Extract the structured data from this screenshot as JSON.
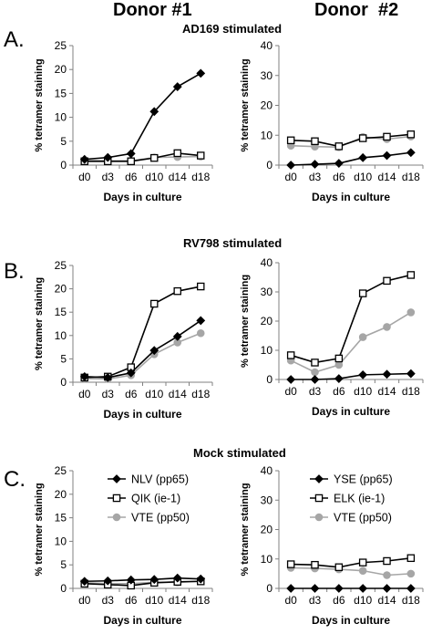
{
  "donors": [
    "Donor #1",
    "Donor  #2"
  ],
  "rows": [
    {
      "letter": "A.",
      "title": "AD169 stimulated"
    },
    {
      "letter": "B.",
      "title": "RV798 stimulated"
    },
    {
      "letter": "C.",
      "title": "Mock stimulated"
    }
  ],
  "colors": {
    "black": "#000000",
    "gray": "#a6a6a6",
    "axis": "#808080"
  },
  "chart_data": [
    {
      "id": "A1",
      "type": "line",
      "ylabel": "% tetramer staining",
      "xlabel": "Days in culture",
      "categories": [
        "d0",
        "d3",
        "d6",
        "d10",
        "d14",
        "d18"
      ],
      "ylim": [
        0,
        25
      ],
      "yticks": [
        0,
        5,
        10,
        15,
        20,
        25
      ],
      "series": [
        {
          "marker": "diamond",
          "color": "#000000",
          "values": [
            1.2,
            1.6,
            2.4,
            11.2,
            16.4,
            19.2
          ]
        },
        {
          "marker": "square",
          "color": "#000000",
          "values": [
            0.8,
            0.8,
            0.8,
            1.5,
            2.5,
            2.0
          ]
        },
        {
          "marker": "circle",
          "color": "#a6a6a6",
          "values": [
            1.0,
            0.9,
            0.9,
            1.6,
            1.7,
            1.8
          ]
        }
      ]
    },
    {
      "id": "A2",
      "type": "line",
      "ylabel": "% tetramer staining",
      "xlabel": "Days in culture",
      "categories": [
        "d0",
        "d3",
        "d6",
        "d10",
        "d14",
        "d18"
      ],
      "ylim": [
        0,
        40
      ],
      "yticks": [
        0,
        10,
        20,
        30,
        40
      ],
      "series": [
        {
          "marker": "diamond",
          "color": "#000000",
          "values": [
            0,
            0.3,
            0.6,
            2.5,
            3.2,
            4.2
          ]
        },
        {
          "marker": "square",
          "color": "#000000",
          "values": [
            8.3,
            8.0,
            6.3,
            9.0,
            9.5,
            10.3
          ]
        },
        {
          "marker": "circle",
          "color": "#a6a6a6",
          "values": [
            6.5,
            6.2,
            6.0,
            9.4,
            8.7,
            9.6
          ]
        }
      ]
    },
    {
      "id": "B1",
      "type": "line",
      "ylabel": "% tetramer staining",
      "xlabel": "Days in culture",
      "categories": [
        "d0",
        "d3",
        "d6",
        "d10",
        "d14",
        "d18"
      ],
      "ylim": [
        0,
        25
      ],
      "yticks": [
        0,
        5,
        10,
        15,
        20,
        25
      ],
      "series": [
        {
          "marker": "diamond",
          "color": "#000000",
          "values": [
            1.2,
            1.0,
            2.0,
            6.8,
            9.8,
            13.2
          ]
        },
        {
          "marker": "square",
          "color": "#000000",
          "values": [
            1.0,
            1.2,
            3.2,
            16.8,
            19.5,
            20.5
          ]
        },
        {
          "marker": "circle",
          "color": "#a6a6a6",
          "values": [
            0.8,
            0.7,
            1.5,
            6.0,
            8.5,
            10.5
          ]
        }
      ]
    },
    {
      "id": "B2",
      "type": "line",
      "ylabel": "% tetramer staining",
      "xlabel": "Days in culture",
      "categories": [
        "d0",
        "d3",
        "d6",
        "d10",
        "d14",
        "d18"
      ],
      "ylim": [
        0,
        40
      ],
      "yticks": [
        0,
        10,
        20,
        30,
        40
      ],
      "series": [
        {
          "marker": "diamond",
          "color": "#000000",
          "values": [
            0,
            0,
            0.3,
            1.6,
            1.8,
            2.0
          ]
        },
        {
          "marker": "square",
          "color": "#000000",
          "values": [
            8.3,
            5.8,
            7.2,
            29.5,
            33.8,
            35.8
          ]
        },
        {
          "marker": "circle",
          "color": "#a6a6a6",
          "values": [
            6.5,
            2.5,
            5.0,
            14.5,
            18.0,
            23.0
          ]
        }
      ]
    },
    {
      "id": "C1",
      "type": "line",
      "ylabel": "% tetramer staining",
      "xlabel": "Days in culture",
      "categories": [
        "d0",
        "d3",
        "d6",
        "d10",
        "d14",
        "d18"
      ],
      "ylim": [
        0,
        25
      ],
      "yticks": [
        0,
        5,
        10,
        15,
        20,
        25
      ],
      "legend": [
        "NLV (pp65)",
        "QIK (ie-1)",
        "VTE (pp50)"
      ],
      "series": [
        {
          "name": "NLV (pp65)",
          "marker": "diamond",
          "color": "#000000",
          "values": [
            1.5,
            1.6,
            1.8,
            1.9,
            2.2,
            2.0
          ]
        },
        {
          "name": "QIK (ie-1)",
          "marker": "square",
          "color": "#000000",
          "values": [
            1.0,
            0.8,
            0.6,
            1.2,
            1.4,
            1.5
          ]
        },
        {
          "name": "VTE (pp50)",
          "marker": "circle",
          "color": "#a6a6a6",
          "values": [
            1.2,
            1.0,
            1.0,
            1.3,
            1.3,
            1.5
          ]
        }
      ]
    },
    {
      "id": "C2",
      "type": "line",
      "ylabel": "% tetramer staining",
      "xlabel": "Days in culture",
      "categories": [
        "d0",
        "d3",
        "d6",
        "d10",
        "d14",
        "d18"
      ],
      "ylim": [
        0,
        40
      ],
      "yticks": [
        0,
        10,
        20,
        30,
        40
      ],
      "legend": [
        "YSE (pp65)",
        "ELK (ie-1)",
        "VTE (pp50)"
      ],
      "series": [
        {
          "name": "YSE (pp65)",
          "marker": "diamond",
          "color": "#000000",
          "values": [
            0,
            0,
            0,
            0,
            0,
            0
          ]
        },
        {
          "name": "ELK (ie-1)",
          "marker": "square",
          "color": "#000000",
          "values": [
            8.2,
            8.0,
            7.2,
            8.8,
            9.3,
            10.3
          ]
        },
        {
          "name": "VTE (pp50)",
          "marker": "circle",
          "color": "#a6a6a6",
          "values": [
            7.0,
            6.8,
            6.5,
            6.0,
            4.5,
            5.0
          ]
        }
      ]
    }
  ]
}
